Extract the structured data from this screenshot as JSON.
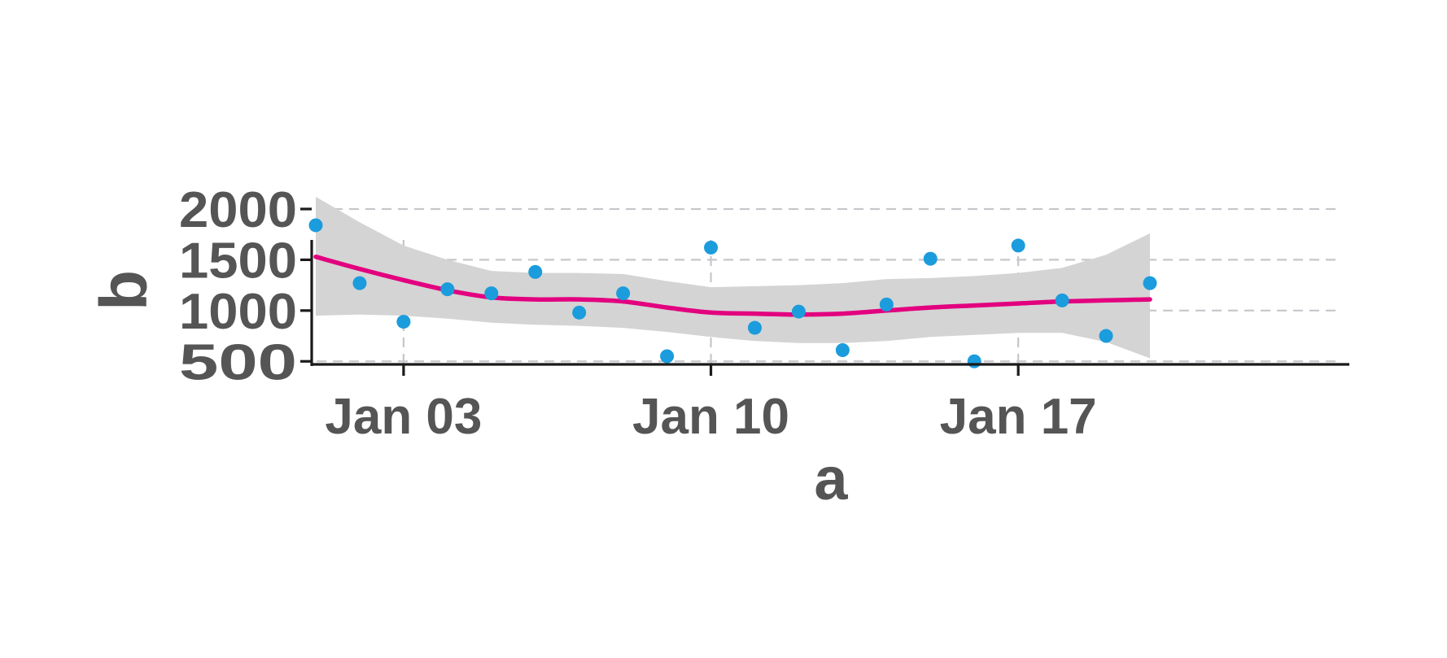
{
  "chart_data": {
    "type": "scatter",
    "xlabel": "a",
    "ylabel": "b",
    "x_type": "date",
    "xlim": [
      "2024-01-01",
      "2024-01-20"
    ],
    "ylim": [
      430,
      2200
    ],
    "x_ticks": [
      {
        "date": "2024-01-03",
        "label": "Jan 03"
      },
      {
        "date": "2024-01-10",
        "label": "Jan 10"
      },
      {
        "date": "2024-01-17",
        "label": "Jan 17"
      }
    ],
    "y_ticks": [
      {
        "value": 500,
        "label": "500"
      },
      {
        "value": 1000,
        "label": "1000"
      },
      {
        "value": 1500,
        "label": "1500"
      },
      {
        "value": 2000,
        "label": "2000"
      }
    ],
    "grid": true,
    "points": [
      {
        "x": "2024-01-01",
        "y": 1840
      },
      {
        "x": "2024-01-02",
        "y": 1270
      },
      {
        "x": "2024-01-03",
        "y": 890
      },
      {
        "x": "2024-01-04",
        "y": 1210
      },
      {
        "x": "2024-01-05",
        "y": 1170
      },
      {
        "x": "2024-01-06",
        "y": 1380
      },
      {
        "x": "2024-01-07",
        "y": 980
      },
      {
        "x": "2024-01-08",
        "y": 1170
      },
      {
        "x": "2024-01-09",
        "y": 550
      },
      {
        "x": "2024-01-10",
        "y": 1620
      },
      {
        "x": "2024-01-11",
        "y": 830
      },
      {
        "x": "2024-01-12",
        "y": 990
      },
      {
        "x": "2024-01-13",
        "y": 610
      },
      {
        "x": "2024-01-14",
        "y": 1060
      },
      {
        "x": "2024-01-15",
        "y": 1510
      },
      {
        "x": "2024-01-16",
        "y": 500
      },
      {
        "x": "2024-01-17",
        "y": 1640
      },
      {
        "x": "2024-01-18",
        "y": 1100
      },
      {
        "x": "2024-01-19",
        "y": 750
      },
      {
        "x": "2024-01-20",
        "y": 1270
      }
    ],
    "smooth": {
      "x": [
        "2024-01-01",
        "2024-01-02",
        "2024-01-03",
        "2024-01-04",
        "2024-01-05",
        "2024-01-06",
        "2024-01-07",
        "2024-01-08",
        "2024-01-09",
        "2024-01-10",
        "2024-01-11",
        "2024-01-12",
        "2024-01-13",
        "2024-01-14",
        "2024-01-15",
        "2024-01-16",
        "2024-01-17",
        "2024-01-18",
        "2024-01-19",
        "2024-01-20"
      ],
      "fit": [
        1530,
        1410,
        1300,
        1200,
        1130,
        1110,
        1110,
        1090,
        1030,
        980,
        970,
        960,
        970,
        1000,
        1030,
        1050,
        1070,
        1090,
        1100,
        1110
      ],
      "lower": [
        950,
        960,
        950,
        920,
        880,
        860,
        850,
        830,
        790,
        740,
        700,
        680,
        680,
        700,
        740,
        760,
        780,
        780,
        690,
        530
      ],
      "upper": [
        2120,
        1870,
        1640,
        1500,
        1390,
        1370,
        1370,
        1360,
        1290,
        1230,
        1240,
        1250,
        1270,
        1310,
        1320,
        1340,
        1370,
        1420,
        1550,
        1760
      ]
    },
    "colors": {
      "points": "#1b9cdc",
      "smooth_line": "#e3007f",
      "band": "#d4d4d4",
      "grid": "#c6c6cc",
      "axis": "#1a1a1a",
      "text": "#555555"
    }
  }
}
